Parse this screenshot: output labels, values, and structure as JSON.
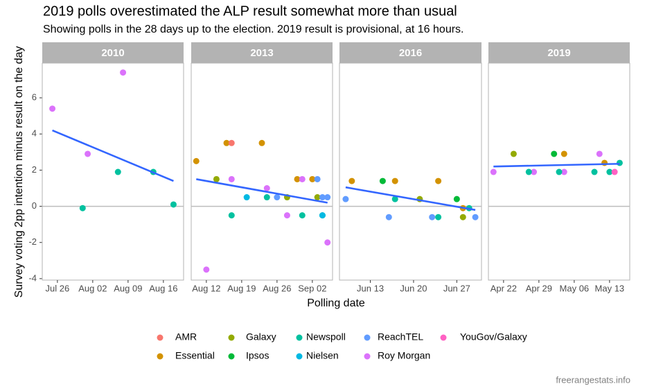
{
  "title": "2019 polls overestimated the ALP result somewhat more than usual",
  "subtitle": "Showing polls in the 28 days up to the election. 2019 result is provisional, at 16 hours.",
  "x_label": "Polling date",
  "y_label": "Survey voting 2pp intention minus result on the day",
  "source": "freerangestats.info",
  "ylim": [
    -4.08,
    7.92
  ],
  "yticks": [
    -4,
    -2,
    0,
    2,
    4,
    6
  ],
  "reference_line": 0,
  "trend_color": "#3366ff",
  "legend": [
    {
      "name": "AMR",
      "color": "#f8766d"
    },
    {
      "name": "Essential",
      "color": "#d39200"
    },
    {
      "name": "Galaxy",
      "color": "#93aa00"
    },
    {
      "name": "Ipsos",
      "color": "#00ba38"
    },
    {
      "name": "Newspoll",
      "color": "#00c19f"
    },
    {
      "name": "Nielsen",
      "color": "#00b9e3"
    },
    {
      "name": "ReachTEL",
      "color": "#619cff"
    },
    {
      "name": "Roy Morgan",
      "color": "#db72fb"
    },
    {
      "name": "YouGov/Galaxy",
      "color": "#ff61c3"
    }
  ],
  "chart_data": [
    {
      "type": "scatter",
      "title": "2010",
      "xlim": [
        "2010-07-23",
        "2010-08-20"
      ],
      "xticks": [
        {
          "value": "2010-07-26",
          "label": "Jul 26"
        },
        {
          "value": "2010-08-02",
          "label": "Aug 02"
        },
        {
          "value": "2010-08-09",
          "label": "Aug 09"
        },
        {
          "value": "2010-08-16",
          "label": "Aug 16"
        }
      ],
      "series": [
        {
          "name": "Roy Morgan",
          "x": [
            "2010-07-25",
            "2010-08-01",
            "2010-08-08"
          ],
          "values": [
            5.4,
            2.9,
            7.4
          ]
        },
        {
          "name": "Newspoll",
          "x": [
            "2010-07-31",
            "2010-08-07",
            "2010-08-14",
            "2010-08-18"
          ],
          "values": [
            -0.1,
            1.9,
            1.9,
            0.1
          ]
        }
      ],
      "trend": {
        "x": [
          "2010-07-25",
          "2010-08-18"
        ],
        "values": [
          4.2,
          1.4
        ]
      }
    },
    {
      "type": "scatter",
      "title": "2013",
      "xlim": [
        "2013-08-09",
        "2013-09-06"
      ],
      "xticks": [
        {
          "value": "2013-08-12",
          "label": "Aug 12"
        },
        {
          "value": "2013-08-19",
          "label": "Aug 19"
        },
        {
          "value": "2013-08-26",
          "label": "Aug 26"
        },
        {
          "value": "2013-09-02",
          "label": "Sep 02"
        }
      ],
      "series": [
        {
          "name": "Essential",
          "x": [
            "2013-08-10",
            "2013-08-16",
            "2013-08-23",
            "2013-08-30",
            "2013-09-02"
          ],
          "values": [
            2.5,
            3.5,
            3.5,
            1.5,
            1.5
          ]
        },
        {
          "name": "AMR",
          "x": [
            "2013-08-17"
          ],
          "values": [
            3.5
          ]
        },
        {
          "name": "Roy Morgan",
          "x": [
            "2013-08-12",
            "2013-08-17",
            "2013-08-24",
            "2013-08-28",
            "2013-08-31",
            "2013-09-05"
          ],
          "values": [
            -3.5,
            1.5,
            1.0,
            -0.5,
            1.5,
            -2.0
          ]
        },
        {
          "name": "Galaxy",
          "x": [
            "2013-08-14",
            "2013-08-28",
            "2013-09-03"
          ],
          "values": [
            1.5,
            0.5,
            0.5
          ]
        },
        {
          "name": "Newspoll",
          "x": [
            "2013-08-17",
            "2013-08-24",
            "2013-08-31",
            "2013-09-04"
          ],
          "values": [
            -0.5,
            0.5,
            -0.5,
            -0.5
          ]
        },
        {
          "name": "Nielsen",
          "x": [
            "2013-08-20",
            "2013-09-04"
          ],
          "values": [
            0.5,
            -0.5
          ]
        },
        {
          "name": "ReachTEL",
          "x": [
            "2013-08-26",
            "2013-09-03",
            "2013-09-04",
            "2013-09-05"
          ],
          "values": [
            0.5,
            1.5,
            0.5,
            0.5
          ]
        }
      ],
      "trend": {
        "x": [
          "2013-08-10",
          "2013-09-05"
        ],
        "values": [
          1.5,
          0.2
        ]
      }
    },
    {
      "type": "scatter",
      "title": "2016",
      "xlim": [
        "2016-06-08",
        "2016-07-01"
      ],
      "xticks": [
        {
          "value": "2016-06-13",
          "label": "Jun 13"
        },
        {
          "value": "2016-06-20",
          "label": "Jun 20"
        },
        {
          "value": "2016-06-27",
          "label": "Jun 27"
        }
      ],
      "series": [
        {
          "name": "ReachTEL",
          "x": [
            "2016-06-09",
            "2016-06-16",
            "2016-06-23",
            "2016-06-30"
          ],
          "values": [
            0.4,
            -0.6,
            -0.6,
            -0.6
          ]
        },
        {
          "name": "Essential",
          "x": [
            "2016-06-10",
            "2016-06-17",
            "2016-06-24",
            "2016-06-28"
          ],
          "values": [
            1.4,
            1.4,
            1.4,
            -0.1
          ]
        },
        {
          "name": "Ipsos",
          "x": [
            "2016-06-15",
            "2016-06-27"
          ],
          "values": [
            1.4,
            0.4
          ]
        },
        {
          "name": "Newspoll",
          "x": [
            "2016-06-17",
            "2016-06-24",
            "2016-06-29"
          ],
          "values": [
            0.4,
            -0.6,
            -0.1
          ]
        },
        {
          "name": "Galaxy",
          "x": [
            "2016-06-21",
            "2016-06-28"
          ],
          "values": [
            0.4,
            -0.6
          ]
        }
      ],
      "trend": {
        "x": [
          "2016-06-09",
          "2016-06-30"
        ],
        "values": [
          1.05,
          -0.2
        ]
      }
    },
    {
      "type": "scatter",
      "title": "2019",
      "xlim": [
        "2019-04-19",
        "2019-05-17"
      ],
      "xticks": [
        {
          "value": "2019-04-22",
          "label": "Apr 22"
        },
        {
          "value": "2019-04-29",
          "label": "Apr 29"
        },
        {
          "value": "2019-05-06",
          "label": "May 06"
        },
        {
          "value": "2019-05-13",
          "label": "May 13"
        }
      ],
      "series": [
        {
          "name": "Roy Morgan",
          "x": [
            "2019-04-20",
            "2019-04-28",
            "2019-05-04",
            "2019-05-11"
          ],
          "values": [
            1.9,
            1.9,
            1.9,
            2.9
          ]
        },
        {
          "name": "Galaxy",
          "x": [
            "2019-04-24"
          ],
          "values": [
            2.9
          ]
        },
        {
          "name": "Newspoll",
          "x": [
            "2019-04-27",
            "2019-05-03",
            "2019-05-10",
            "2019-05-13",
            "2019-05-15"
          ],
          "values": [
            1.9,
            1.9,
            1.9,
            1.9,
            2.4
          ]
        },
        {
          "name": "Ipsos",
          "x": [
            "2019-05-02"
          ],
          "values": [
            2.9
          ]
        },
        {
          "name": "Essential",
          "x": [
            "2019-05-04",
            "2019-05-12"
          ],
          "values": [
            2.9,
            2.4
          ]
        },
        {
          "name": "YouGov/Galaxy",
          "x": [
            "2019-05-14"
          ],
          "values": [
            1.9
          ]
        }
      ],
      "trend": {
        "x": [
          "2019-04-20",
          "2019-05-15"
        ],
        "values": [
          2.2,
          2.35
        ]
      }
    }
  ]
}
